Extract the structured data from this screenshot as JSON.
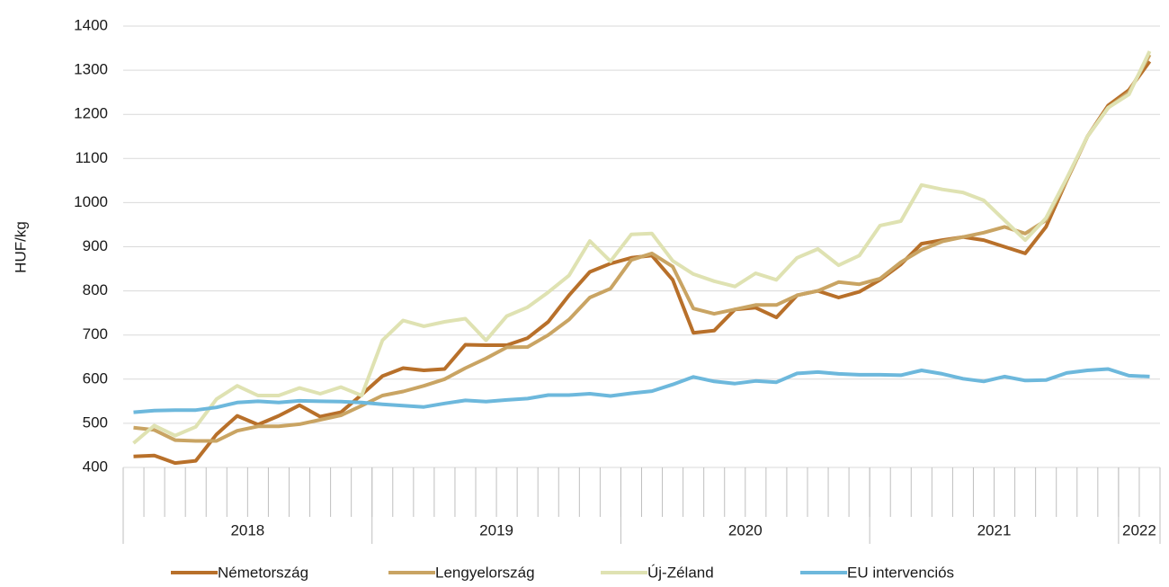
{
  "chart_data": {
    "type": "line",
    "y_label": "HUF/kg",
    "categories": [
      null,
      null,
      null,
      null,
      null,
      null,
      null,
      null,
      null,
      null,
      null,
      null,
      null,
      null,
      null,
      null,
      null,
      null,
      null,
      null,
      null,
      null,
      null,
      null,
      null,
      null,
      null,
      null,
      null,
      null,
      null,
      null,
      null,
      null,
      null,
      null,
      null,
      null,
      null,
      null,
      null,
      null,
      null,
      null,
      null,
      null,
      null,
      null,
      null,
      null
    ],
    "groups": [
      {
        "label": "2018",
        "count": 12
      },
      {
        "label": "2019",
        "count": 12
      },
      {
        "label": "2020",
        "count": 12
      },
      {
        "label": "2021",
        "count": 12
      },
      {
        "label": "2022",
        "count": 2
      }
    ],
    "ylim": [
      400,
      1400
    ],
    "yticks": [
      400,
      500,
      600,
      700,
      800,
      900,
      1000,
      1100,
      1200,
      1300,
      1400
    ],
    "grid": true,
    "legend": "bottom",
    "series": [
      {
        "name": "Németország",
        "color": "#b8702a",
        "values": [
          425,
          427,
          410,
          415,
          475,
          517,
          497,
          517,
          541,
          515,
          525,
          565,
          607,
          625,
          620,
          623,
          678,
          677,
          677,
          693,
          730,
          790,
          843,
          862,
          875,
          880,
          825,
          705,
          710,
          758,
          762,
          740,
          790,
          800,
          785,
          798,
          825,
          860,
          907,
          915,
          922,
          915,
          900,
          885,
          945,
          1050,
          1150,
          1220,
          1255,
          1320
        ]
      },
      {
        "name": "Lengyelország",
        "color": "#c9a463",
        "values": [
          490,
          485,
          462,
          460,
          460,
          483,
          493,
          493,
          498,
          508,
          518,
          540,
          563,
          572,
          585,
          600,
          625,
          647,
          672,
          673,
          700,
          735,
          785,
          805,
          870,
          885,
          855,
          760,
          748,
          758,
          768,
          768,
          790,
          800,
          820,
          815,
          828,
          865,
          893,
          912,
          922,
          932,
          945,
          930,
          960,
          1050,
          1150,
          1215,
          1250,
          1335
        ]
      },
      {
        "name": "Új-Zéland",
        "color": "#dfe2b2",
        "values": [
          455,
          495,
          472,
          492,
          555,
          585,
          563,
          563,
          580,
          567,
          582,
          563,
          688,
          733,
          720,
          730,
          737,
          688,
          743,
          763,
          797,
          835,
          913,
          867,
          928,
          930,
          868,
          838,
          822,
          810,
          840,
          825,
          875,
          895,
          858,
          880,
          948,
          958,
          1040,
          1030,
          1023,
          1005,
          960,
          915,
          965,
          1055,
          1150,
          1215,
          1245,
          1343
        ]
      },
      {
        "name": "EU intervenciós",
        "color": "#6db8dc",
        "values": [
          525,
          529,
          530,
          530,
          536,
          547,
          550,
          547,
          551,
          550,
          549,
          547,
          543,
          540,
          537,
          545,
          552,
          549,
          553,
          556,
          564,
          564,
          567,
          562,
          568,
          573,
          588,
          605,
          595,
          590,
          596,
          593,
          613,
          616,
          612,
          610,
          610,
          609,
          620,
          612,
          601,
          595,
          606,
          597,
          598,
          614,
          620,
          623,
          608,
          606
        ]
      }
    ]
  }
}
